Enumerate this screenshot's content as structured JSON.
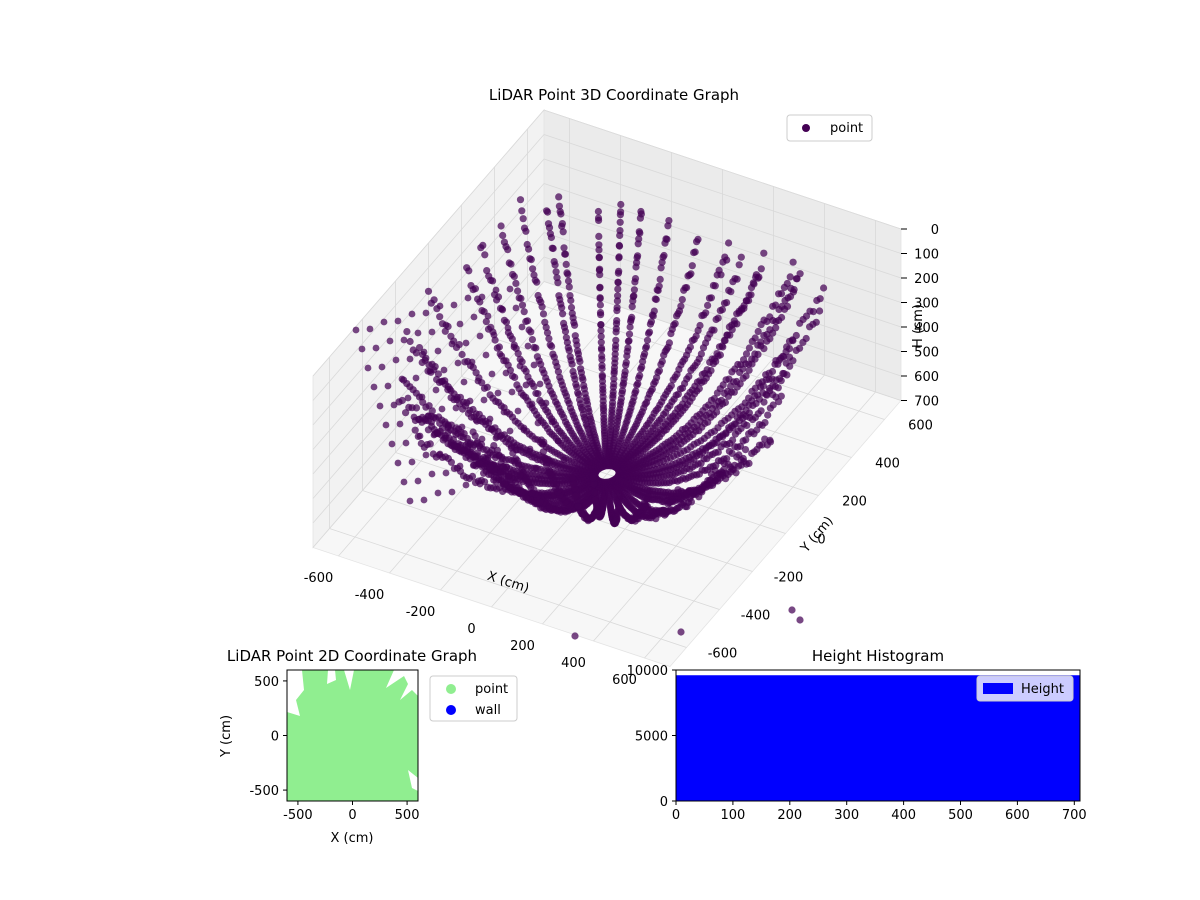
{
  "chart_data": [
    {
      "type": "scatter3d",
      "title": "LiDAR Point 3D Coordinate Graph",
      "xlabel": "X (cm)",
      "ylabel": "Y (cm)",
      "zlabel": "H (cm)",
      "xlim": [
        -700,
        700
      ],
      "ylim": [
        -700,
        700
      ],
      "zlim": [
        0,
        700
      ],
      "z_inverted": true,
      "x_ticks": [
        "-600",
        "-400",
        "-200",
        "0",
        "200",
        "400",
        "600"
      ],
      "y_ticks": [
        "-600",
        "-400",
        "-200",
        "0",
        "200",
        "400",
        "600"
      ],
      "z_ticks": [
        "0",
        "100",
        "200",
        "300",
        "400",
        "500",
        "600",
        "700"
      ],
      "legend": {
        "position": "top-right",
        "entries": [
          {
            "label": "point",
            "color": "#440154"
          }
        ]
      },
      "point_color": "#440154",
      "series": [
        {
          "name": "point",
          "description_shape": "radial arcs of points rising from center toward edges"
        }
      ]
    },
    {
      "type": "scatter",
      "title": "LiDAR Point 2D Coordinate Graph",
      "xlabel": "X (cm)",
      "ylabel": "Y (cm)",
      "xlim": [
        -600,
        600
      ],
      "ylim": [
        -600,
        600
      ],
      "x_ticks": [
        "-500",
        "0",
        "500"
      ],
      "y_ticks": [
        "-500",
        "0",
        "500"
      ],
      "legend": {
        "position": "outside-right",
        "entries": [
          {
            "label": "point",
            "color": "#90ee90"
          },
          {
            "label": "wall",
            "color": "#0000ff"
          }
        ]
      }
    },
    {
      "type": "bar",
      "title": "Height Histogram",
      "xlim": [
        0,
        710
      ],
      "ylim": [
        0,
        10000
      ],
      "x_ticks": [
        "0",
        "100",
        "200",
        "300",
        "400",
        "500",
        "600",
        "700"
      ],
      "y_ticks": [
        "0",
        "5000",
        "10000"
      ],
      "bar_value": 9600,
      "bar_range": [
        0,
        710
      ],
      "bar_color": "#0000ff",
      "legend": {
        "position": "top-right",
        "entries": [
          {
            "label": "Height",
            "color": "#0000ff"
          }
        ]
      }
    }
  ]
}
